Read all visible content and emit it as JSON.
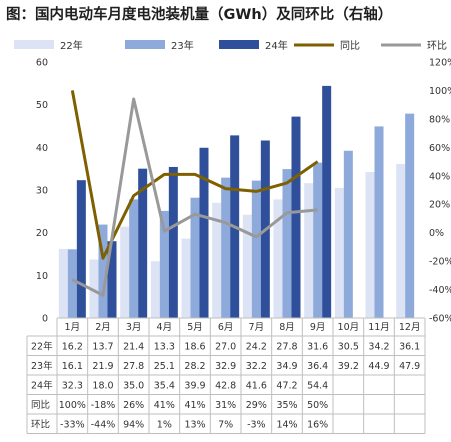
{
  "chart_data": {
    "type": "bar",
    "title": "图：国内电动车月度电池装机量（GWh）及同环比（右轴）",
    "categories": [
      "1月",
      "2月",
      "3月",
      "4月",
      "5月",
      "6月",
      "7月",
      "8月",
      "9月",
      "10月",
      "11月",
      "12月"
    ],
    "series": [
      {
        "name": "22年",
        "type": "bar",
        "axis": "left",
        "color": "#dbe3f4",
        "values": [
          16.2,
          13.7,
          21.4,
          13.3,
          18.6,
          27.0,
          24.2,
          27.8,
          31.6,
          30.5,
          34.2,
          36.1
        ],
        "labels": [
          "16.2",
          "13.7",
          "21.4",
          "13.3",
          "18.6",
          "27.0",
          "24.2",
          "27.8",
          "31.6",
          "30.5",
          "34.2",
          "36.1"
        ]
      },
      {
        "name": "23年",
        "type": "bar",
        "axis": "left",
        "color": "#8eaadb",
        "values": [
          16.1,
          21.9,
          27.8,
          25.1,
          28.2,
          32.9,
          32.2,
          34.9,
          36.4,
          39.2,
          44.9,
          47.9
        ],
        "labels": [
          "16.1",
          "21.9",
          "27.8",
          "25.1",
          "28.2",
          "32.9",
          "32.2",
          "34.9",
          "36.4",
          "39.2",
          "44.9",
          "47.9"
        ]
      },
      {
        "name": "24年",
        "type": "bar",
        "axis": "left",
        "color": "#2f4f9a",
        "values": [
          32.3,
          18.0,
          35.0,
          35.4,
          39.9,
          42.8,
          41.6,
          47.2,
          54.4,
          null,
          null,
          null
        ],
        "labels": [
          "32.3",
          "18.0",
          "35.0",
          "35.4",
          "39.9",
          "42.8",
          "41.6",
          "47.2",
          "54.4",
          "",
          "",
          ""
        ]
      },
      {
        "name": "同比",
        "type": "line",
        "axis": "right",
        "color": "#7f6000",
        "values": [
          100,
          -18,
          26,
          41,
          41,
          31,
          29,
          35,
          50,
          null,
          null,
          null
        ],
        "labels": [
          "100%",
          "-18%",
          "26%",
          "41%",
          "41%",
          "31%",
          "29%",
          "35%",
          "50%",
          "",
          "",
          ""
        ]
      },
      {
        "name": "环比",
        "type": "line",
        "axis": "right",
        "color": "#999999",
        "values": [
          -33,
          -44,
          94,
          1,
          13,
          7,
          -3,
          14,
          16,
          null,
          null,
          null
        ],
        "labels": [
          "-33%",
          "-44%",
          "94%",
          "1%",
          "13%",
          "7%",
          "-3%",
          "14%",
          "16%",
          "",
          "",
          ""
        ]
      }
    ],
    "left_axis": {
      "ylim": [
        0,
        60
      ],
      "ticks": [
        "0",
        "10",
        "20",
        "30",
        "40",
        "50",
        "60"
      ],
      "label": ""
    },
    "right_axis": {
      "ylim": [
        -60,
        120
      ],
      "ticks": [
        "-60%",
        "-40%",
        "-20%",
        "0%",
        "20%",
        "40%",
        "60%",
        "80%",
        "100%",
        "120%"
      ],
      "label": ""
    },
    "legend_position": "top",
    "grid": false,
    "data_table": true
  }
}
